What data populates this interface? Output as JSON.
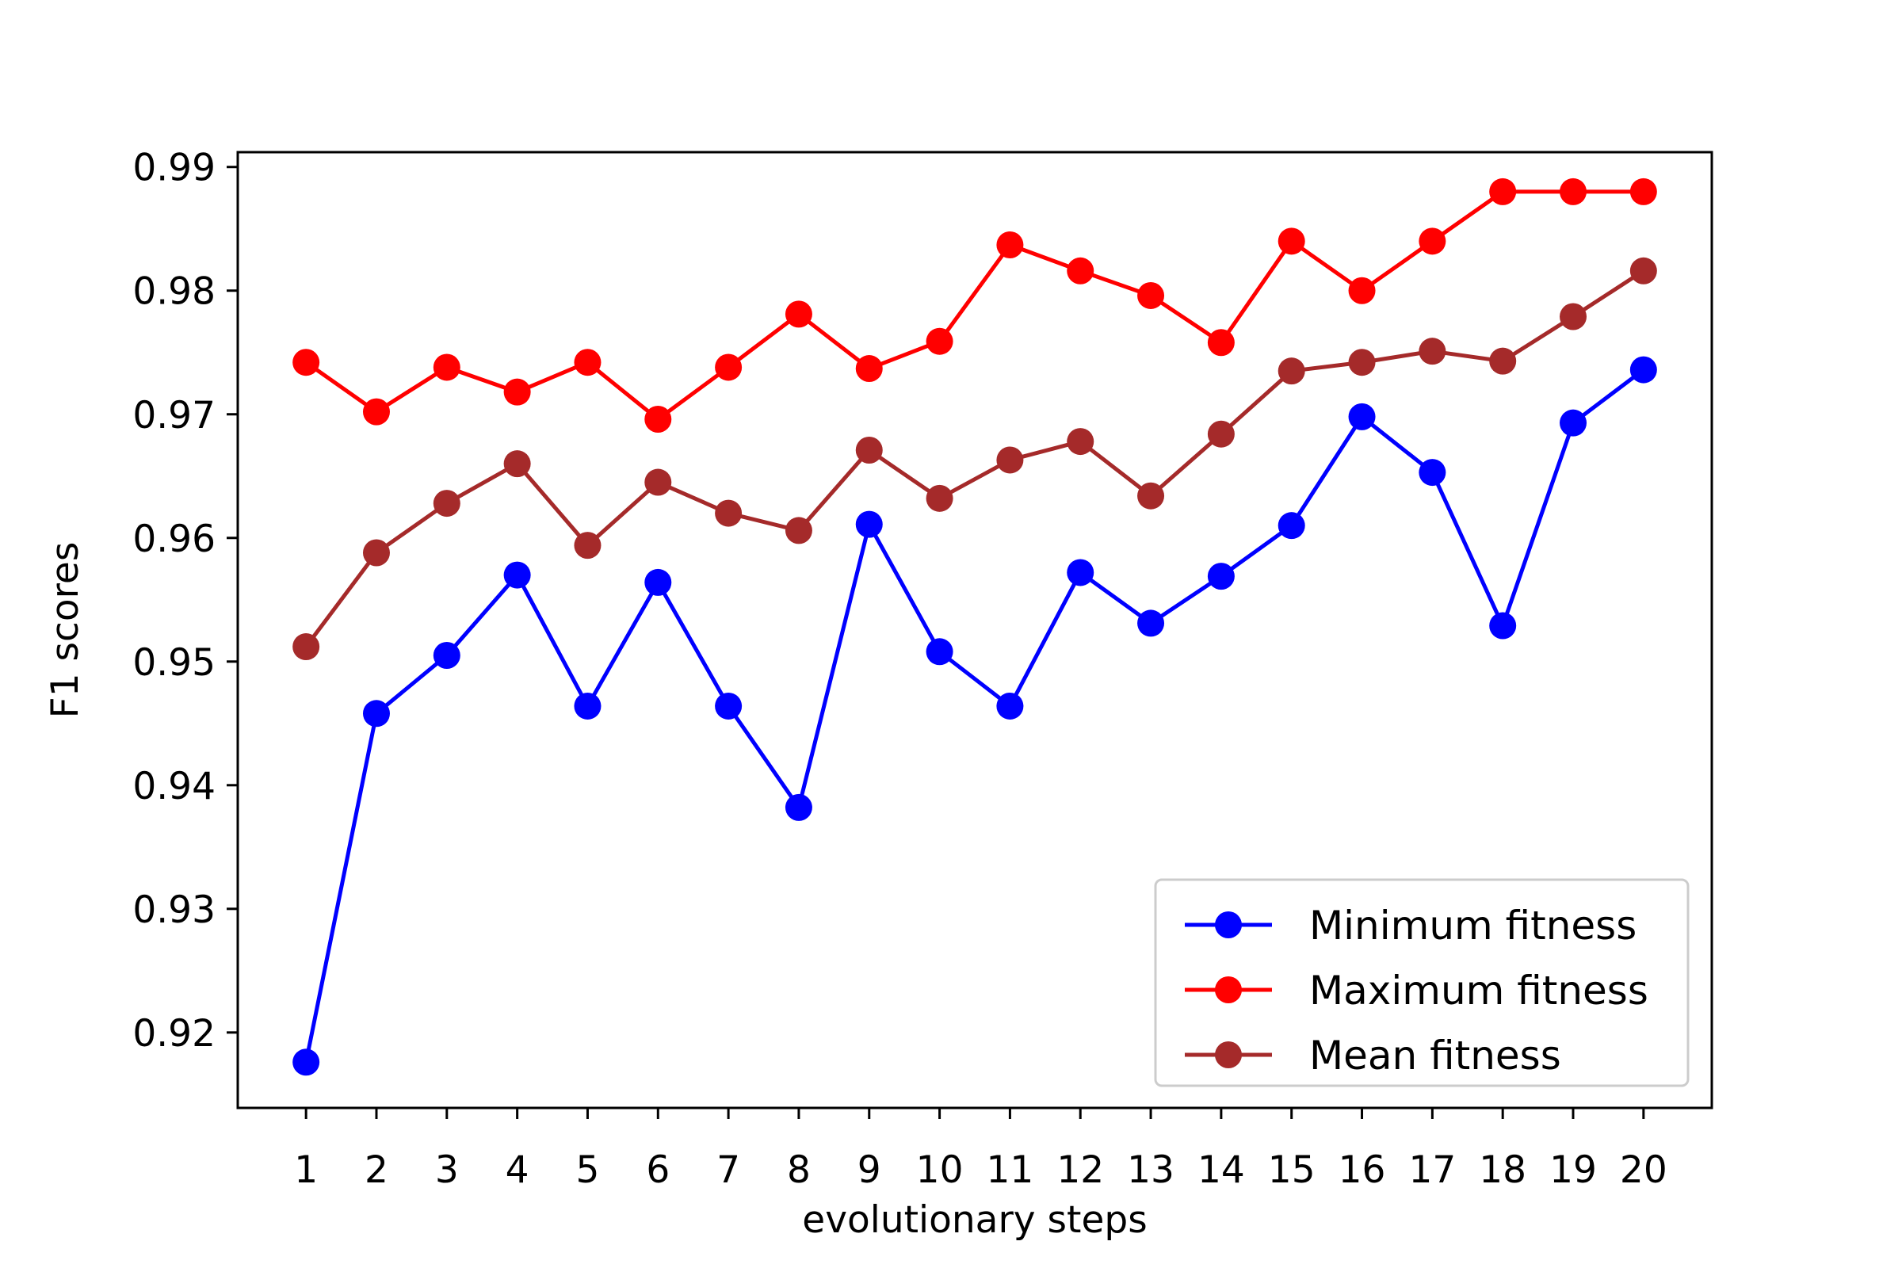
{
  "chart_data": {
    "type": "line",
    "title": "",
    "xlabel": "evolutionary steps",
    "ylabel": "F1 scores",
    "x": [
      1,
      2,
      3,
      4,
      5,
      6,
      7,
      8,
      9,
      10,
      11,
      12,
      13,
      14,
      15,
      16,
      17,
      18,
      19,
      20
    ],
    "xticks": [
      "1",
      "2",
      "3",
      "4",
      "5",
      "6",
      "7",
      "8",
      "9",
      "10",
      "11",
      "12",
      "13",
      "14",
      "15",
      "16",
      "17",
      "18",
      "19",
      "20"
    ],
    "yticks": [
      "0.92",
      "0.93",
      "0.94",
      "0.95",
      "0.96",
      "0.97",
      "0.98",
      "0.99"
    ],
    "xlim": [
      0.03,
      20.97
    ],
    "ylim": [
      0.9139,
      0.9912
    ],
    "grid": false,
    "legend_position": "lower-right",
    "series": [
      {
        "name": "Minimum fitness",
        "color": "#0000ff",
        "values": [
          0.9176,
          0.9458,
          0.9505,
          0.957,
          0.9464,
          0.9564,
          0.9464,
          0.9382,
          0.9611,
          0.9508,
          0.9464,
          0.9572,
          0.9531,
          0.9569,
          0.961,
          0.9698,
          0.9653,
          0.9529,
          0.9693,
          0.9736
        ]
      },
      {
        "name": "Maximum fitness",
        "color": "#ff0000",
        "values": [
          0.9742,
          0.9702,
          0.9738,
          0.9718,
          0.9742,
          0.9696,
          0.9738,
          0.9781,
          0.9737,
          0.9759,
          0.9837,
          0.9816,
          0.9796,
          0.9758,
          0.984,
          0.98,
          0.984,
          0.988,
          0.988,
          0.988
        ]
      },
      {
        "name": "Mean fitness",
        "color": "#a52a2a",
        "values": [
          0.9512,
          0.9588,
          0.9628,
          0.966,
          0.9594,
          0.9645,
          0.962,
          0.9606,
          0.9671,
          0.9632,
          0.9663,
          0.9678,
          0.9634,
          0.9684,
          0.9735,
          0.9742,
          0.9751,
          0.9743,
          0.9779,
          0.9816
        ]
      }
    ]
  }
}
